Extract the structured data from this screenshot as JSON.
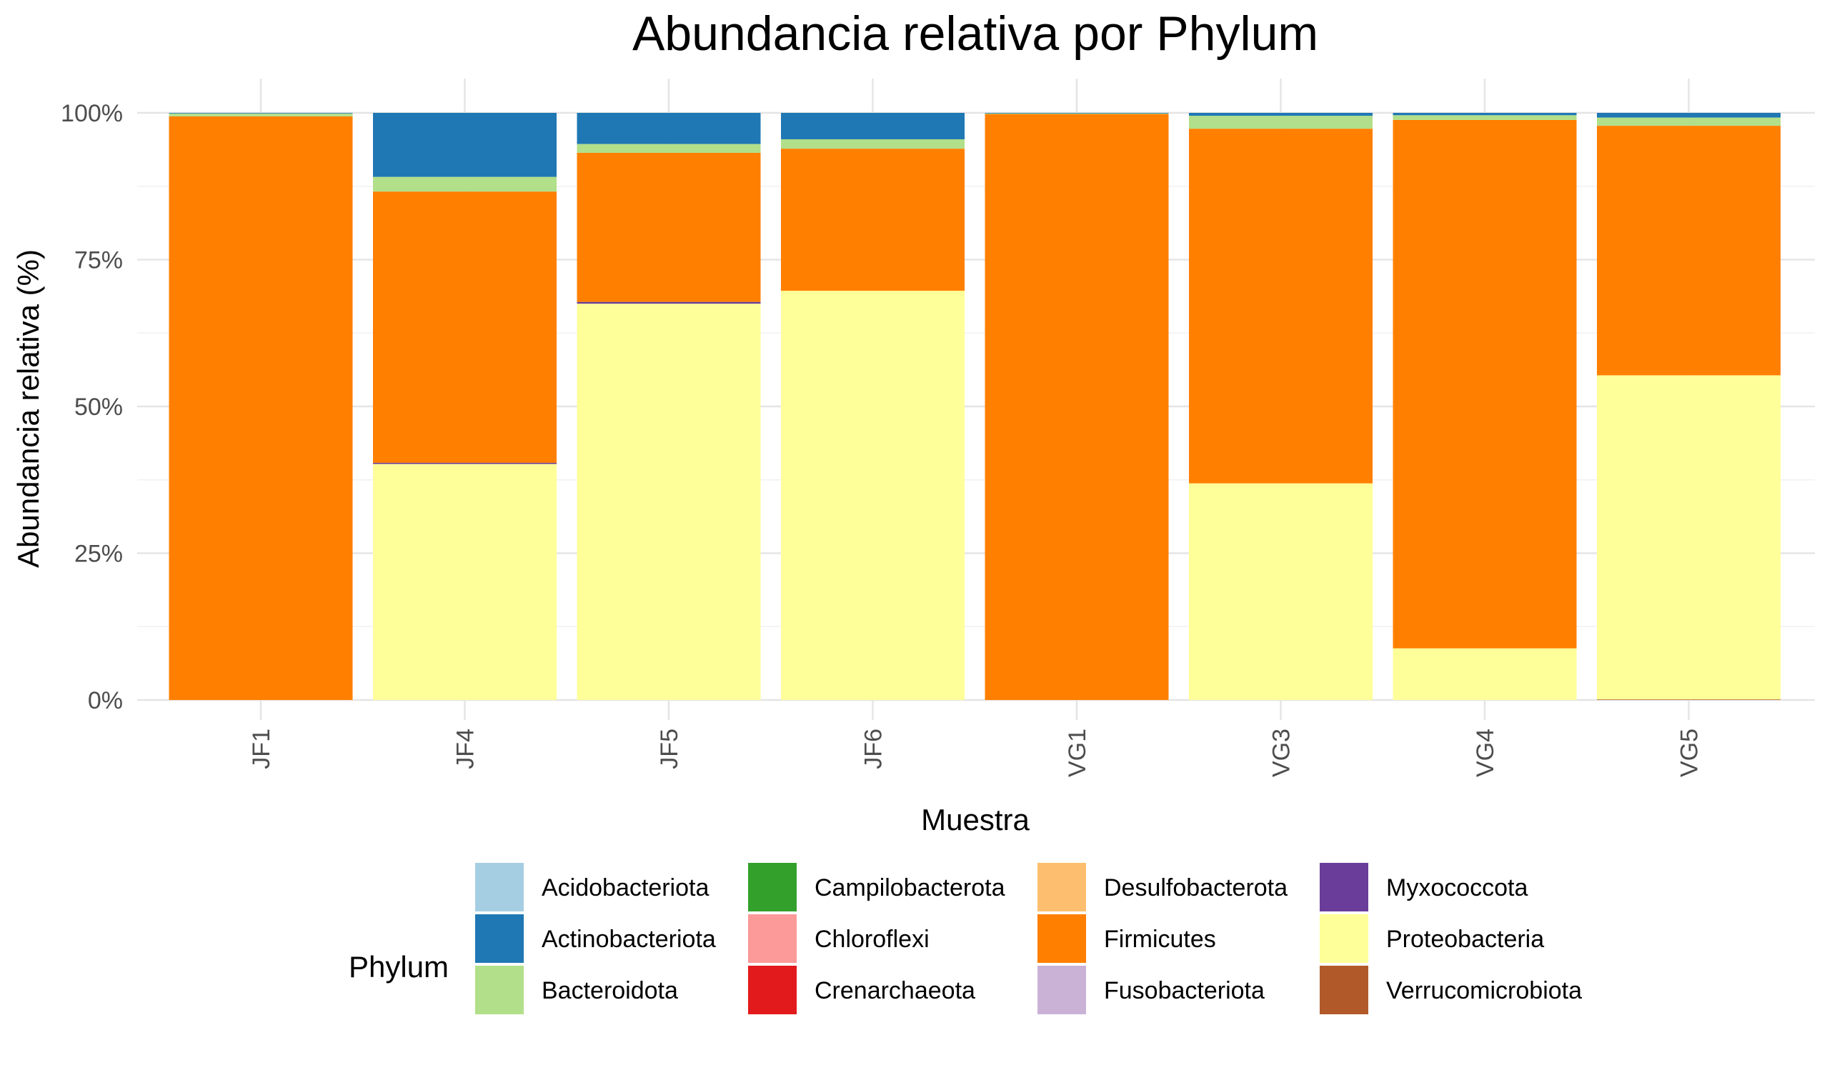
{
  "chart_data": {
    "type": "bar",
    "stacked": true,
    "title": "Abundancia relativa por Phylum",
    "xlabel": "Muestra",
    "ylabel": "Abundancia relativa (%)",
    "ylim": [
      0,
      100
    ],
    "yticks": [
      0,
      25,
      50,
      75,
      100
    ],
    "ytick_labels": [
      "0%",
      "25%",
      "50%",
      "75%",
      "100%"
    ],
    "grid": true,
    "legend_position": "bottom",
    "legend_title": "Phylum",
    "categories": [
      "JF1",
      "JF4",
      "JF5",
      "JF6",
      "VG1",
      "VG3",
      "VG4",
      "VG5"
    ],
    "series": [
      {
        "name": "Acidobacteriota",
        "color": "#A6CEE3",
        "values": [
          0,
          0,
          0,
          0,
          0,
          0,
          0,
          0
        ]
      },
      {
        "name": "Actinobacteriota",
        "color": "#1F78B4",
        "values": [
          0.1,
          10.9,
          5.3,
          4.5,
          0.1,
          0.5,
          0.4,
          0.8
        ]
      },
      {
        "name": "Bacteroidota",
        "color": "#B2DF8A",
        "values": [
          0.5,
          2.5,
          1.5,
          1.6,
          0.1,
          2.2,
          0.8,
          1.4
        ]
      },
      {
        "name": "Campilobacterota",
        "color": "#33A02C",
        "values": [
          0,
          0,
          0,
          0,
          0,
          0,
          0,
          0
        ]
      },
      {
        "name": "Chloroflexi",
        "color": "#FB9A99",
        "values": [
          0,
          0,
          0,
          0,
          0,
          0,
          0,
          0
        ]
      },
      {
        "name": "Crenarchaeota",
        "color": "#E31A1C",
        "values": [
          0,
          0,
          0,
          0,
          0,
          0,
          0,
          0
        ]
      },
      {
        "name": "Desulfobacterota",
        "color": "#FDBF6F",
        "values": [
          0,
          0,
          0,
          0,
          0,
          0,
          0,
          0
        ]
      },
      {
        "name": "Firmicutes",
        "color": "#FF7F00",
        "values": [
          99.4,
          46.2,
          25.4,
          24.2,
          99.8,
          60.4,
          90.0,
          42.5
        ]
      },
      {
        "name": "Fusobacteriota",
        "color": "#CAB2D6",
        "values": [
          0,
          0,
          0,
          0,
          0,
          0,
          0,
          0
        ]
      },
      {
        "name": "Myxococcota",
        "color": "#6A3D9A",
        "values": [
          0,
          0.2,
          0.3,
          0,
          0,
          0,
          0,
          0
        ]
      },
      {
        "name": "Proteobacteria",
        "color": "#FFFF99",
        "values": [
          0,
          40.2,
          67.5,
          69.7,
          0,
          36.9,
          8.8,
          55.2
        ]
      },
      {
        "name": "Verrucomicrobiota",
        "color": "#B15928",
        "values": [
          0,
          0,
          0,
          0,
          0,
          0,
          0,
          0.1
        ]
      }
    ]
  }
}
